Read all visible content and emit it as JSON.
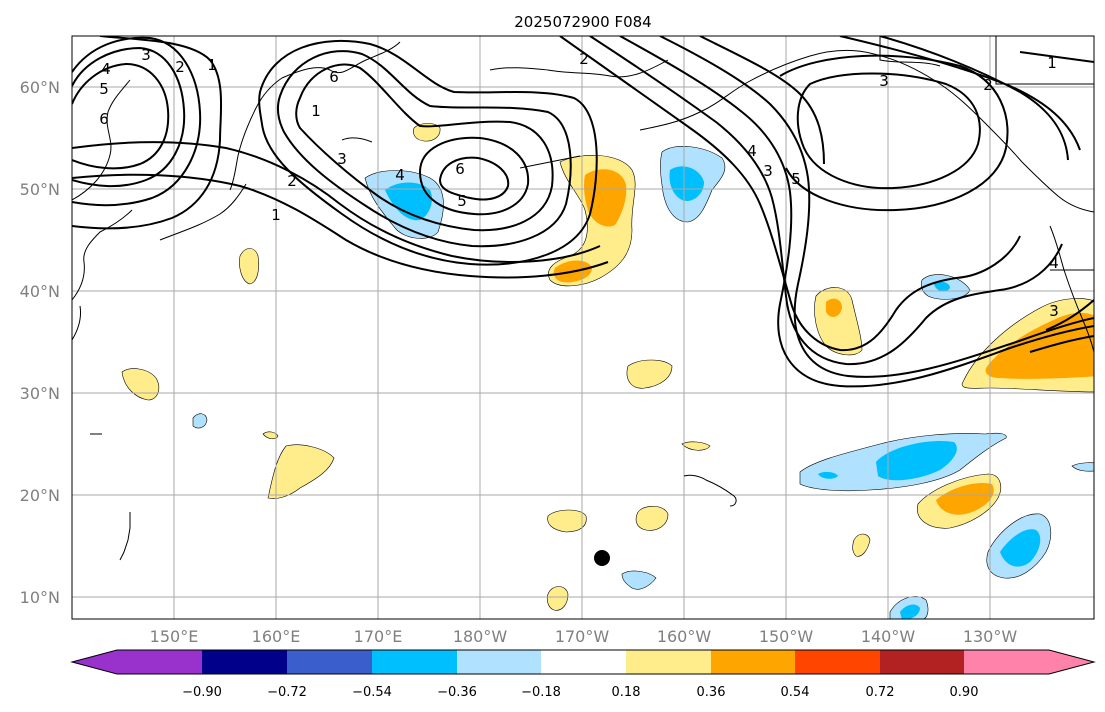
{
  "title": "2025072900 F084",
  "lat_labels": [
    "60°N",
    "50°N",
    "40°N",
    "30°N",
    "20°N",
    "10°N"
  ],
  "lon_labels": [
    "150°E",
    "160°E",
    "170°E",
    "180°W",
    "170°W",
    "160°W",
    "150°W",
    "140°W",
    "130°W"
  ],
  "colorbar": {
    "ticks": [
      "−0.90",
      "−0.72",
      "−0.54",
      "−0.36",
      "−0.18",
      "0.18",
      "0.36",
      "0.54",
      "0.72",
      "0.90"
    ],
    "colors": [
      "#9932cc",
      "#00008b",
      "#3a5fcd",
      "#00bfff",
      "#b0e2ff",
      "#ffffff",
      "#ffec8b",
      "#ffa500",
      "#ff4500",
      "#b22222",
      "#ff82ab"
    ]
  },
  "contour_labels": [
    "1",
    "2",
    "3",
    "4",
    "5",
    "6",
    "3",
    "2",
    "1",
    "4",
    "5",
    "6",
    "3",
    "2",
    "1",
    "2",
    "4",
    "3",
    "5",
    "6",
    "1",
    "4",
    "3"
  ],
  "colors": {
    "yellow": "#ffec8b",
    "orange": "#ffa500",
    "light_blue": "#b0e2ff",
    "blue": "#00bfff"
  }
}
